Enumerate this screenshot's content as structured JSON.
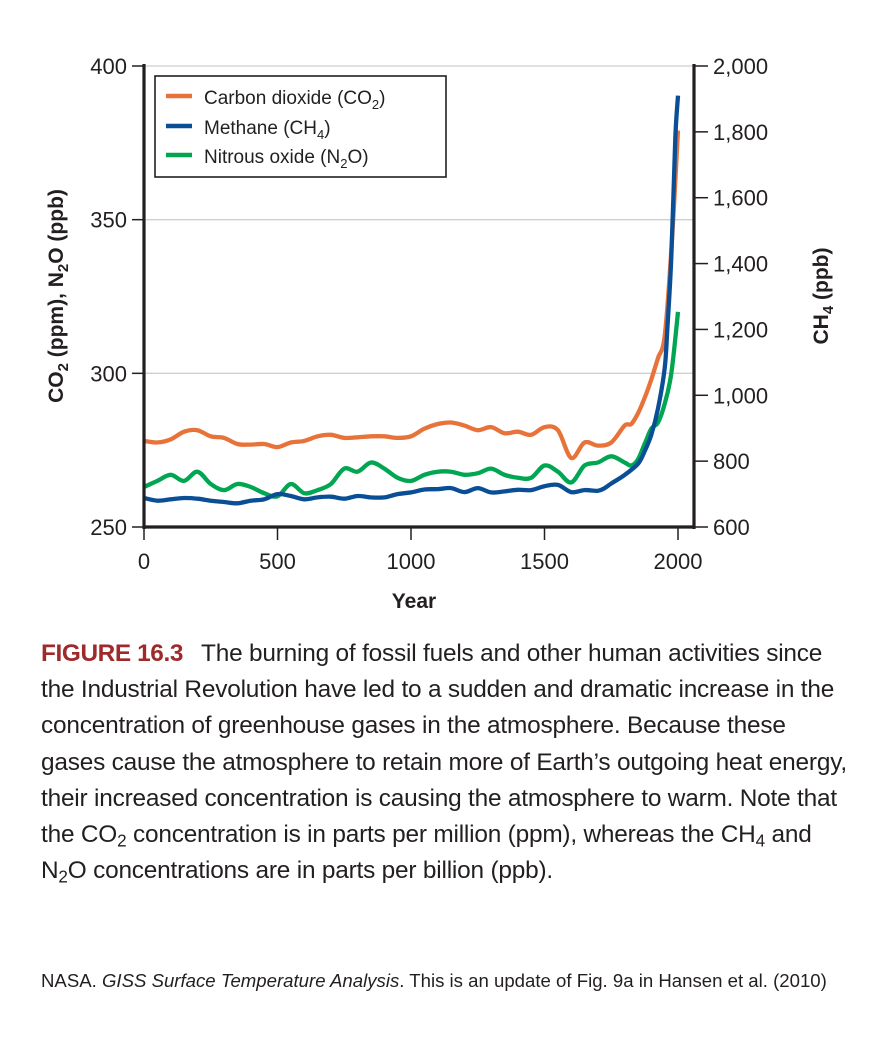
{
  "chart_data": {
    "type": "line",
    "title": "",
    "xlabel": "Year",
    "ylabel_left": "CO2 (ppm), N2O (ppb)",
    "ylabel_right": "CH4 (ppb)",
    "xlim": [
      0,
      2000
    ],
    "ylim_left": [
      250,
      400
    ],
    "ylim_right": [
      600,
      2000
    ],
    "x_ticks": [
      "0",
      "500",
      "1000",
      "1500",
      "2000"
    ],
    "x_tick_values": [
      0,
      500,
      1000,
      1500,
      2000
    ],
    "y_left_ticks": [
      "250",
      "300",
      "350",
      "400"
    ],
    "y_left_tick_values": [
      250,
      300,
      350,
      400
    ],
    "y_right_ticks": [
      "600",
      "800",
      "1,000",
      "1,200",
      "1,400",
      "1,600",
      "1,800",
      "2,000"
    ],
    "y_right_tick_values": [
      600,
      800,
      1000,
      1200,
      1400,
      1600,
      1800,
      2000
    ],
    "grid": "horizontal at left-axis ticks",
    "legend_position": "top-left",
    "series": [
      {
        "name": "Carbon dioxide (CO2)",
        "axis": "left",
        "color": "#e8733a",
        "x": [
          0,
          50,
          100,
          150,
          200,
          250,
          300,
          350,
          400,
          450,
          500,
          550,
          600,
          650,
          700,
          750,
          800,
          850,
          900,
          950,
          1000,
          1050,
          1100,
          1150,
          1200,
          1250,
          1300,
          1350,
          1400,
          1450,
          1500,
          1550,
          1600,
          1650,
          1700,
          1750,
          1800,
          1825,
          1850,
          1875,
          1900,
          1925,
          1950,
          1975,
          2000
        ],
        "values": [
          278,
          277.5,
          278.5,
          281,
          281.5,
          279.5,
          279,
          277,
          276.8,
          277,
          276,
          277.5,
          278,
          279.5,
          280,
          279,
          279.2,
          279.5,
          279.5,
          279,
          279.5,
          282,
          283.5,
          284,
          283,
          281.5,
          282.5,
          280.5,
          281,
          280,
          282.5,
          281.5,
          272.5,
          277.5,
          276.5,
          277.5,
          283,
          283.5,
          287,
          292,
          298,
          305,
          312,
          340,
          379
        ]
      },
      {
        "name": "Methane (CH4)",
        "axis": "right",
        "color": "#0a4f96",
        "x": [
          0,
          50,
          100,
          150,
          200,
          250,
          300,
          350,
          400,
          450,
          500,
          550,
          600,
          650,
          700,
          750,
          800,
          850,
          900,
          950,
          1000,
          1050,
          1100,
          1150,
          1200,
          1250,
          1300,
          1350,
          1400,
          1450,
          1500,
          1550,
          1600,
          1650,
          1700,
          1725,
          1750,
          1800,
          1850,
          1875,
          1900,
          1925,
          1950,
          1960,
          1975,
          1990,
          2000
        ],
        "values": [
          688,
          680,
          684,
          688,
          686,
          680,
          676,
          672,
          680,
          684,
          700,
          694,
          684,
          690,
          692,
          686,
          694,
          690,
          690,
          700,
          705,
          714,
          715,
          718,
          706,
          718,
          705,
          708,
          713,
          712,
          724,
          728,
          706,
          712,
          710,
          718,
          732,
          758,
          792,
          830,
          880,
          960,
          1080,
          1200,
          1420,
          1780,
          1910
        ]
      },
      {
        "name": "Nitrous oxide (N2O)",
        "axis": "left",
        "color": "#00a651",
        "x": [
          0,
          50,
          100,
          150,
          200,
          250,
          300,
          350,
          400,
          450,
          500,
          550,
          600,
          650,
          700,
          750,
          800,
          850,
          900,
          950,
          1000,
          1050,
          1100,
          1150,
          1200,
          1250,
          1300,
          1350,
          1400,
          1450,
          1500,
          1550,
          1600,
          1650,
          1700,
          1750,
          1800,
          1825,
          1850,
          1875,
          1900,
          1925,
          1950,
          1975,
          2000
        ],
        "values": [
          263,
          265,
          267,
          265,
          268,
          264,
          262,
          264,
          263,
          261,
          260,
          264,
          261,
          262,
          264,
          269,
          268,
          271,
          269,
          266,
          265,
          267,
          268,
          268,
          267,
          267.5,
          269,
          267,
          266,
          266,
          270,
          268,
          264.5,
          270,
          271,
          273,
          271,
          270,
          272,
          277,
          282,
          284,
          290,
          300,
          320
        ]
      }
    ]
  },
  "legend": {
    "co2": {
      "text": "Carbon dioxide (CO",
      "sub": "2",
      "tail": ")"
    },
    "ch4": {
      "text": "Methane (CH",
      "sub": "4",
      "tail": ")"
    },
    "n2o": {
      "text": "Nitrous oxide (N",
      "sub": "2",
      "tail": "O)"
    }
  },
  "axes": {
    "left_title": {
      "a": "CO",
      "a_sub": "2",
      "b": " (ppm), N",
      "b_sub": "2",
      "c": "O (ppb)"
    },
    "right_title": {
      "a": "CH",
      "a_sub": "4",
      "b": " (ppb)"
    },
    "x_title": "Year"
  },
  "caption": {
    "label": "FIGURE 16.3",
    "label_color": "#9e2a2b",
    "p1": "The burning of fossil fuels and other human activities since the Industrial Revolution have led to a sudden and dramatic increase in the concentration of greenhouse gases in the atmosphere. Because these gases cause the atmosphere to retain more of Earth’s outgoing heat energy, their increased concentration is causing the atmosphere to warm. Note that the CO",
    "sub1": "2",
    "p2": " concentration is in parts per million (ppm), whereas the CH",
    "sub2": "4",
    "p3": " and N",
    "sub3": "2",
    "p4": "O concentrations are in parts per billion (ppb)."
  },
  "source": {
    "pre": "NASA. ",
    "italic": "GISS Surface Temperature Analysis",
    "post": ". This is an update of Fig. 9a in Hansen et al. (2010)"
  }
}
